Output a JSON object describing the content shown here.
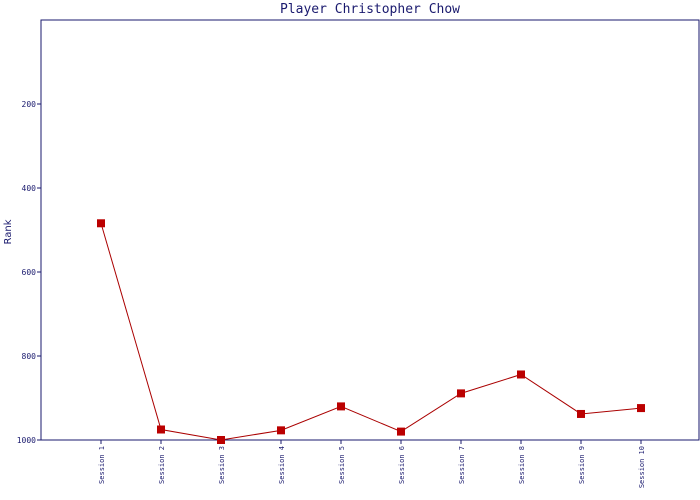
{
  "chart_data": {
    "type": "line",
    "title": "Player Christopher Chow",
    "xlabel": "",
    "ylabel": "Rank",
    "categories": [
      "Session 1",
      "Session 2",
      "Session 3",
      "Session 4",
      "Session 5",
      "Session 6",
      "Session 7",
      "Session 8",
      "Session 9",
      "Session 10"
    ],
    "series": [
      {
        "values": [
          484,
          975,
          1000,
          977,
          920,
          980,
          889,
          844,
          938,
          924
        ]
      }
    ],
    "ylim": [
      0,
      1000
    ],
    "y_inverted": true,
    "yticks": [
      200,
      400,
      600,
      800,
      1000
    ],
    "grid": false,
    "legend": "none",
    "colors": {
      "line": "#aa0000",
      "marker": "#bb0000",
      "axis": "#1a1a6e",
      "text": "#1a1a6e"
    }
  }
}
